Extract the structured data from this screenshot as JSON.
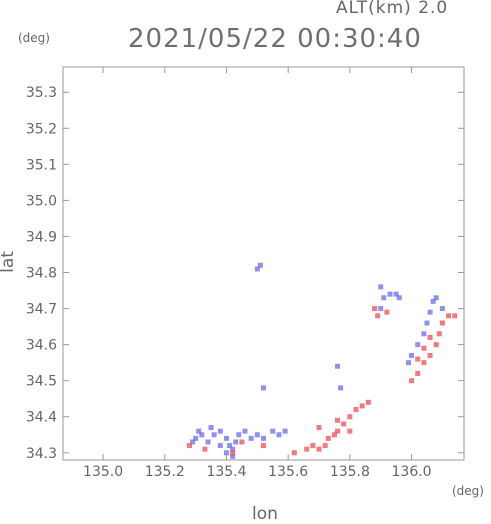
{
  "header": {
    "altitude": "ALT(km)  2.0",
    "timestamp": "2021/05/22 00:30:40"
  },
  "chart_data": {
    "type": "scatter",
    "title": "2021/05/22 00:30:40",
    "xlabel": "lon",
    "ylabel": "lat",
    "xunit": "(deg)",
    "yunit": "(deg)",
    "xlim": [
      134.87,
      136.17
    ],
    "ylim": [
      34.28,
      35.37
    ],
    "xticks": [
      135.0,
      135.2,
      135.4,
      135.6,
      135.8,
      136.0
    ],
    "xtick_labels": [
      "135.0",
      "135.2",
      "135.4",
      "135.6",
      "135.8",
      "136.0"
    ],
    "yticks": [
      34.3,
      34.4,
      34.5,
      34.6,
      34.7,
      34.8,
      34.9,
      35.0,
      35.1,
      35.2,
      35.3
    ],
    "ytick_labels": [
      "34.3",
      "34.4",
      "34.5",
      "34.6",
      "34.7",
      "34.8",
      "34.9",
      "35.0",
      "35.1",
      "35.2",
      "35.3"
    ],
    "grid": false,
    "colors": {
      "approaching": "#6b6bef",
      "receding": "#ef4b55"
    },
    "series": [
      {
        "key": "approaching",
        "color": "#6b6bef",
        "points": [
          [
            135.3,
            34.34
          ],
          [
            135.32,
            34.35
          ],
          [
            135.34,
            34.33
          ],
          [
            135.36,
            34.35
          ],
          [
            135.38,
            34.36
          ],
          [
            135.4,
            34.34
          ],
          [
            135.41,
            34.32
          ],
          [
            135.42,
            34.31
          ],
          [
            135.43,
            34.33
          ],
          [
            135.44,
            34.35
          ],
          [
            135.46,
            34.36
          ],
          [
            135.38,
            34.32
          ],
          [
            135.35,
            34.37
          ],
          [
            135.31,
            34.36
          ],
          [
            135.29,
            34.33
          ],
          [
            135.48,
            34.34
          ],
          [
            135.5,
            34.35
          ],
          [
            135.52,
            34.34
          ],
          [
            135.55,
            34.36
          ],
          [
            135.57,
            34.35
          ],
          [
            135.59,
            34.36
          ],
          [
            135.42,
            34.29
          ],
          [
            135.4,
            34.3
          ],
          [
            135.5,
            34.81
          ],
          [
            135.51,
            34.82
          ],
          [
            135.52,
            34.48
          ],
          [
            135.76,
            34.54
          ],
          [
            135.77,
            34.48
          ],
          [
            135.9,
            34.76
          ],
          [
            135.91,
            34.73
          ],
          [
            135.9,
            34.7
          ],
          [
            135.93,
            34.74
          ],
          [
            135.95,
            34.74
          ],
          [
            135.96,
            34.73
          ],
          [
            135.99,
            34.55
          ],
          [
            136.0,
            34.57
          ],
          [
            136.02,
            34.6
          ],
          [
            136.04,
            34.63
          ],
          [
            136.05,
            34.66
          ],
          [
            136.06,
            34.69
          ],
          [
            136.07,
            34.72
          ],
          [
            136.08,
            34.73
          ],
          [
            136.1,
            34.7
          ]
        ]
      },
      {
        "key": "receding",
        "color": "#ef4b55",
        "points": [
          [
            135.28,
            34.32
          ],
          [
            135.33,
            34.31
          ],
          [
            135.42,
            34.3
          ],
          [
            135.45,
            34.33
          ],
          [
            135.52,
            34.32
          ],
          [
            135.62,
            34.3
          ],
          [
            135.66,
            34.31
          ],
          [
            135.68,
            34.32
          ],
          [
            135.7,
            34.31
          ],
          [
            135.72,
            34.32
          ],
          [
            135.73,
            34.34
          ],
          [
            135.75,
            34.35
          ],
          [
            135.76,
            34.36
          ],
          [
            135.78,
            34.38
          ],
          [
            135.8,
            34.4
          ],
          [
            135.82,
            34.42
          ],
          [
            135.84,
            34.43
          ],
          [
            135.86,
            34.44
          ],
          [
            135.76,
            34.39
          ],
          [
            135.7,
            34.37
          ],
          [
            135.8,
            34.36
          ],
          [
            135.88,
            34.7
          ],
          [
            135.89,
            34.68
          ],
          [
            135.92,
            34.69
          ],
          [
            136.0,
            34.5
          ],
          [
            136.02,
            34.52
          ],
          [
            136.04,
            34.55
          ],
          [
            136.06,
            34.57
          ],
          [
            136.08,
            34.6
          ],
          [
            136.09,
            34.63
          ],
          [
            136.1,
            34.66
          ],
          [
            136.12,
            34.68
          ],
          [
            136.14,
            34.68
          ],
          [
            136.06,
            34.62
          ],
          [
            136.04,
            34.59
          ],
          [
            136.02,
            34.56
          ]
        ]
      }
    ]
  }
}
